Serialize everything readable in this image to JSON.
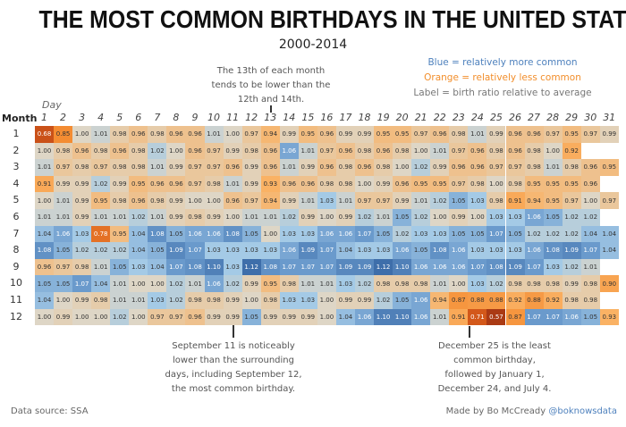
{
  "title": "THE MOST COMMON BIRTHDAYS IN THE UNITED STATES",
  "subtitle": "2000-2014",
  "legend": {
    "blue": "Blue = relatively more common",
    "orange": "Orange = relatively less common",
    "label": "Label = birth ratio relative to average",
    "blue_color": "#4e81bd",
    "orange_color": "#f28e2b"
  },
  "annotations": {
    "thirteenth": [
      "The 13th of each month",
      "tends to be lower than the",
      "12th and 14th."
    ],
    "sept11": [
      "September 11 is noticeably",
      "lower than the surrounding",
      "days, including September 12,",
      "the most common birthday."
    ],
    "dec25": [
      "December 25 is the least",
      "common birthday,",
      "followed by January 1,",
      "December 24, and July 4."
    ]
  },
  "footer": {
    "source": "Data source: SSA",
    "made_by": "Made by Bo McCready",
    "handle": "@boknowsdata"
  },
  "chart_data": {
    "type": "heatmap",
    "xlabel": "Day",
    "ylabel": "Month",
    "x": [
      1,
      2,
      3,
      4,
      5,
      6,
      7,
      8,
      9,
      10,
      11,
      12,
      13,
      14,
      15,
      16,
      17,
      18,
      19,
      20,
      21,
      22,
      23,
      24,
      25,
      26,
      27,
      28,
      29,
      30,
      31
    ],
    "y": [
      1,
      2,
      3,
      4,
      5,
      6,
      7,
      8,
      9,
      10,
      11,
      12
    ],
    "color_scale": {
      "low": "#f28e2b",
      "mid": "#ddd6c8",
      "high": "#4e81bd"
    },
    "values": [
      [
        0.68,
        0.85,
        1.0,
        1.01,
        0.98,
        0.96,
        0.98,
        0.96,
        0.96,
        1.01,
        1.0,
        0.97,
        0.94,
        0.99,
        0.95,
        0.96,
        0.99,
        0.99,
        0.95,
        0.95,
        0.97,
        0.96,
        0.98,
        1.01,
        0.99,
        0.96,
        0.96,
        0.97,
        0.95,
        0.97,
        0.99
      ],
      [
        1.0,
        0.98,
        0.96,
        0.98,
        0.96,
        0.98,
        1.02,
        1.0,
        0.96,
        0.97,
        0.99,
        0.98,
        0.96,
        1.06,
        1.01,
        0.97,
        0.96,
        0.98,
        0.96,
        0.98,
        1.0,
        1.01,
        0.97,
        0.96,
        0.98,
        0.96,
        0.98,
        1.0,
        0.92
      ],
      [
        1.01,
        0.97,
        0.98,
        0.97,
        0.98,
        0.98,
        1.01,
        0.99,
        0.97,
        0.97,
        0.96,
        0.99,
        0.96,
        1.01,
        0.99,
        0.96,
        0.98,
        0.96,
        0.98,
        1.0,
        1.02,
        0.99,
        0.96,
        0.96,
        0.97,
        0.97,
        0.98,
        1.01,
        0.98,
        0.96,
        0.95
      ],
      [
        0.91,
        0.99,
        0.99,
        1.02,
        0.99,
        0.95,
        0.96,
        0.96,
        0.97,
        0.98,
        1.01,
        0.99,
        0.93,
        0.96,
        0.96,
        0.98,
        0.98,
        1.0,
        0.99,
        0.96,
        0.95,
        0.95,
        0.97,
        0.98,
        1.0,
        0.98,
        0.95,
        0.95,
        0.95,
        0.96
      ],
      [
        1.0,
        1.01,
        0.99,
        0.95,
        0.98,
        0.96,
        0.98,
        0.99,
        1.0,
        1.0,
        0.96,
        0.97,
        0.94,
        0.99,
        1.01,
        1.03,
        1.01,
        0.97,
        0.97,
        0.99,
        1.01,
        1.02,
        1.05,
        1.03,
        0.98,
        0.91,
        0.94,
        0.95,
        0.97,
        1.0,
        0.97
      ],
      [
        1.01,
        1.01,
        0.99,
        1.01,
        1.01,
        1.02,
        1.01,
        0.99,
        0.98,
        0.99,
        1.0,
        1.01,
        1.01,
        1.02,
        0.99,
        1.0,
        0.99,
        1.02,
        1.01,
        1.05,
        1.02,
        1.0,
        0.99,
        1.0,
        1.03,
        1.03,
        1.06,
        1.05,
        1.02,
        1.02
      ],
      [
        1.04,
        1.06,
        1.03,
        0.78,
        0.95,
        1.04,
        1.08,
        1.05,
        1.06,
        1.06,
        1.08,
        1.05,
        1.0,
        1.03,
        1.03,
        1.06,
        1.06,
        1.07,
        1.05,
        1.02,
        1.03,
        1.03,
        1.05,
        1.05,
        1.07,
        1.05,
        1.02,
        1.02,
        1.02,
        1.04,
        1.04
      ],
      [
        1.08,
        1.05,
        1.02,
        1.02,
        1.02,
        1.04,
        1.05,
        1.09,
        1.07,
        1.03,
        1.03,
        1.03,
        1.03,
        1.06,
        1.09,
        1.07,
        1.04,
        1.03,
        1.03,
        1.06,
        1.05,
        1.08,
        1.06,
        1.03,
        1.03,
        1.03,
        1.06,
        1.08,
        1.09,
        1.07,
        1.04
      ],
      [
        0.96,
        0.97,
        0.98,
        1.01,
        1.05,
        1.03,
        1.04,
        1.07,
        1.08,
        1.1,
        1.03,
        1.12,
        1.08,
        1.07,
        1.07,
        1.07,
        1.09,
        1.09,
        1.12,
        1.1,
        1.06,
        1.06,
        1.06,
        1.07,
        1.08,
        1.09,
        1.07,
        1.03,
        1.02,
        1.01
      ],
      [
        1.05,
        1.05,
        1.07,
        1.04,
        1.01,
        1.0,
        1.0,
        1.02,
        1.01,
        1.06,
        1.02,
        0.99,
        0.95,
        0.98,
        1.01,
        1.01,
        1.03,
        1.02,
        0.98,
        0.98,
        0.98,
        1.01,
        1.0,
        1.03,
        1.02,
        0.98,
        0.98,
        0.98,
        0.99,
        0.98,
        0.9
      ],
      [
        1.04,
        1.0,
        0.99,
        0.98,
        1.01,
        1.01,
        1.03,
        1.02,
        0.98,
        0.98,
        0.99,
        1.0,
        0.98,
        1.03,
        1.03,
        1.0,
        0.99,
        0.99,
        1.02,
        1.05,
        1.06,
        0.94,
        0.87,
        0.88,
        0.88,
        0.92,
        0.88,
        0.92,
        0.98,
        0.98
      ],
      [
        1.0,
        0.99,
        1.0,
        1.0,
        1.02,
        1.0,
        0.97,
        0.97,
        0.96,
        0.99,
        0.99,
        1.05,
        0.99,
        0.99,
        0.99,
        1.0,
        1.04,
        1.06,
        1.1,
        1.1,
        1.06,
        1.01,
        0.91,
        0.71,
        0.57,
        0.87,
        1.07,
        1.07,
        1.06,
        1.05,
        0.93
      ]
    ]
  }
}
